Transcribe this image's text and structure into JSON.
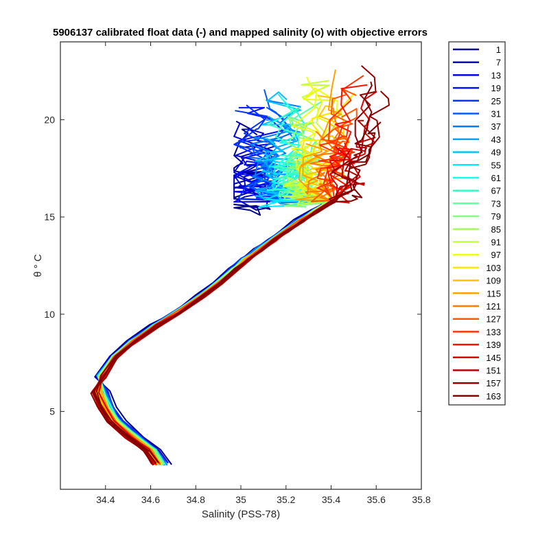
{
  "chart_data": {
    "type": "line",
    "title": "5906137 calibrated float data (-) and mapped salinity (o) with objective errors",
    "xlabel": "Salinity (PSS-78)",
    "ylabel": "θ ° C",
    "xlim": [
      34.2,
      35.8
    ],
    "ylim": [
      1.0,
      24.0
    ],
    "x_ticks": [
      "34.4",
      "34.6",
      "34.8",
      "35",
      "35.2",
      "35.4",
      "35.6",
      "35.8"
    ],
    "y_ticks": [
      "5",
      "10",
      "15",
      "20"
    ],
    "legend_position": "outside-right",
    "colormap": "jet",
    "profile_count_total": 163,
    "legend_entries": [
      "1",
      "7",
      "13",
      "19",
      "25",
      "31",
      "37",
      "43",
      "49",
      "55",
      "61",
      "67",
      "73",
      "79",
      "85",
      "91",
      "97",
      "103",
      "109",
      "115",
      "121",
      "127",
      "133",
      "139",
      "145",
      "151",
      "157",
      "163"
    ],
    "legend_colors": [
      "#000090",
      "#0000b8",
      "#0000e0",
      "#0010ff",
      "#0034ff",
      "#0058ff",
      "#007cff",
      "#00a0ff",
      "#00c4ff",
      "#00e8ff",
      "#14ffeb",
      "#38ffc7",
      "#5cffa3",
      "#80ff80",
      "#a3ff5c",
      "#c7ff38",
      "#ebff14",
      "#ffe800",
      "#ffc400",
      "#ffa000",
      "#ff7c00",
      "#ff5800",
      "#ff3400",
      "#ff1000",
      "#e00000",
      "#b80000",
      "#900000",
      "#800000"
    ],
    "series_shape": {
      "s_anchors": [
        34.64,
        34.6,
        34.52,
        34.44,
        34.4,
        34.37,
        34.38,
        34.44,
        34.52,
        34.62,
        34.72,
        34.82,
        34.9,
        34.97,
        35.02,
        35.08,
        35.14,
        35.2,
        35.26,
        35.33,
        35.4
      ],
      "t_anchors": [
        2.3,
        3.0,
        3.7,
        4.5,
        5.2,
        6.0,
        6.8,
        7.8,
        8.6,
        9.4,
        10.1,
        10.9,
        11.6,
        12.3,
        12.8,
        13.3,
        13.8,
        14.3,
        14.8,
        15.3,
        15.8
      ],
      "upper_layer_salinity_range": [
        34.97,
        35.7
      ],
      "upper_layer_theta_range": [
        12.5,
        23.0
      ]
    }
  }
}
